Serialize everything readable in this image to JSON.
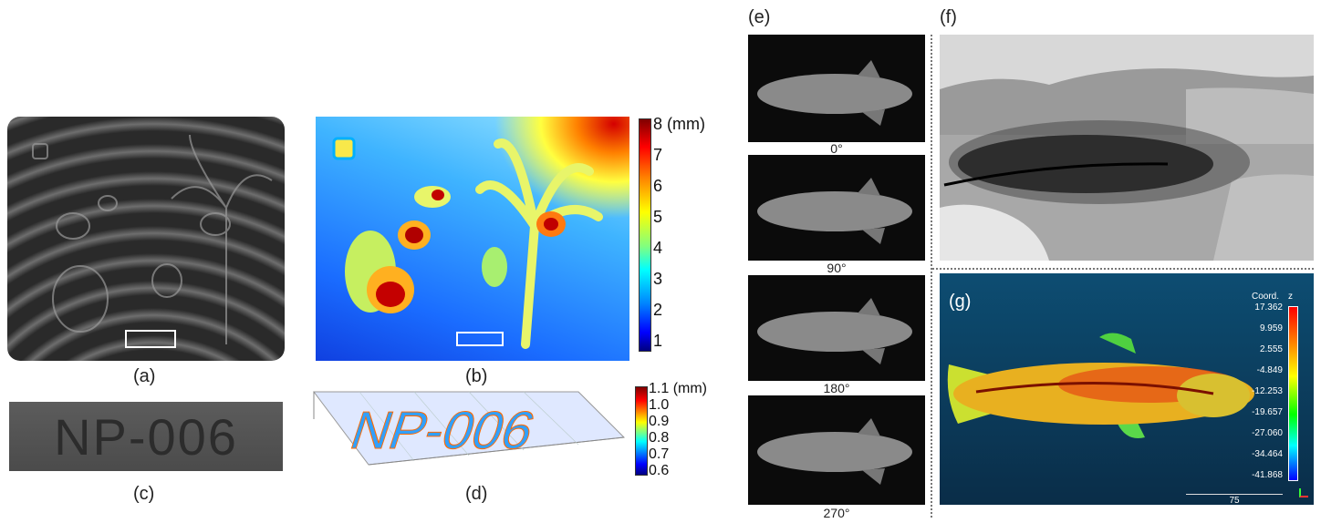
{
  "panels": {
    "a": {
      "label": "(a)"
    },
    "b": {
      "label": "(b)",
      "colorbar": {
        "ticks": [
          "8 (mm)",
          "7",
          "6",
          "5",
          "4",
          "3",
          "2",
          "1"
        ]
      }
    },
    "c": {
      "label": "(c)",
      "plate_text": "NP-006"
    },
    "d": {
      "label": "(d)",
      "plate_text": "NP-006",
      "colorbar": {
        "ticks": [
          "1.1 (mm)",
          "1.0",
          "0.9",
          "0.8",
          "0.7",
          "0.6"
        ]
      }
    },
    "e": {
      "label": "(e)",
      "angles": [
        "0°",
        "90°",
        "180°",
        "270°"
      ]
    },
    "f": {
      "label": "(f)"
    },
    "g": {
      "label": "(g)",
      "colorbar": {
        "title": "Coord.",
        "axis": "z",
        "ticks": [
          "17.362",
          "9.959",
          "2.555",
          "-4.849",
          "-12.253",
          "-19.657",
          "-27.060",
          "-34.464",
          "-41.868"
        ]
      },
      "scale": "75"
    }
  },
  "colors": {
    "jet_top": "#8b0000",
    "jet_bottom": "#00008b",
    "scene_bg": "#0c3a5a"
  }
}
